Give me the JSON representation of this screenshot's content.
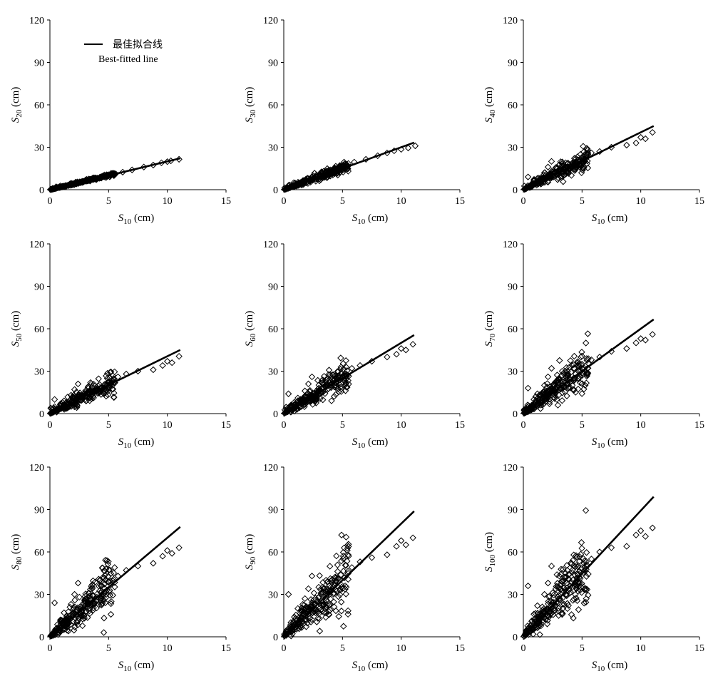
{
  "legend": {
    "label_cn": "最佳拟合线",
    "label_en": "Best-fitted line"
  },
  "colors": {
    "ink": "#000000",
    "background": "#ffffff"
  },
  "chart_data": [
    {
      "type": "scatter",
      "panel": "S20",
      "ylabel": {
        "sym": "S",
        "sub": "20",
        "unit": "(cm)"
      },
      "xlabel": {
        "sym": "S",
        "sub": "10",
        "unit": "(cm)"
      },
      "xlim": [
        0,
        15
      ],
      "ylim": [
        0,
        120
      ],
      "xticks": [
        "0",
        "5",
        "10",
        "15"
      ],
      "yticks": [
        "0",
        "30",
        "60",
        "90",
        "120"
      ],
      "fit": {
        "x": [
          0,
          11.1
        ],
        "y": [
          0,
          22.2
        ]
      },
      "marker": "diamond-open",
      "scatter_spread": 0.07,
      "scatter_points": [
        [
          0.2,
          0.4
        ],
        [
          0.5,
          1.0
        ],
        [
          0.8,
          1.6
        ],
        [
          1.0,
          2.0
        ],
        [
          1.3,
          2.6
        ],
        [
          1.6,
          3.2
        ],
        [
          2.0,
          4.0
        ],
        [
          2.3,
          4.7
        ],
        [
          2.6,
          5.2
        ],
        [
          3.0,
          6.1
        ],
        [
          3.3,
          6.6
        ],
        [
          3.6,
          7.2
        ],
        [
          4.0,
          8.0
        ],
        [
          4.4,
          8.8
        ],
        [
          4.8,
          9.6
        ],
        [
          5.2,
          10.4
        ],
        [
          5.6,
          11.2
        ],
        [
          6.2,
          12.4
        ],
        [
          7.0,
          14.0
        ],
        [
          8.0,
          16.0
        ],
        [
          8.8,
          17.4
        ],
        [
          9.5,
          19.0
        ],
        [
          10.0,
          19.8
        ],
        [
          10.3,
          20.4
        ],
        [
          11.0,
          21.5
        ]
      ],
      "legend": {
        "show": true,
        "placement": "top-left"
      }
    },
    {
      "type": "scatter",
      "panel": "S30",
      "ylabel": {
        "sym": "S",
        "sub": "30",
        "unit": "(cm)"
      },
      "xlabel": {
        "sym": "S",
        "sub": "10",
        "unit": "(cm)"
      },
      "xlim": [
        0,
        15
      ],
      "ylim": [
        0,
        120
      ],
      "xticks": [
        "0",
        "5",
        "10",
        "15"
      ],
      "yticks": [
        "0",
        "30",
        "60",
        "90",
        "120"
      ],
      "fit": {
        "x": [
          0,
          11.1
        ],
        "y": [
          0,
          33.3
        ]
      },
      "marker": "diamond-open",
      "scatter_spread": 0.16,
      "scatter_points": [
        [
          0.2,
          0.6
        ],
        [
          0.5,
          2.0
        ],
        [
          0.8,
          3.0
        ],
        [
          1.0,
          4.0
        ],
        [
          1.4,
          5.0
        ],
        [
          1.7,
          6.5
        ],
        [
          2.0,
          8.0
        ],
        [
          2.4,
          9.0
        ],
        [
          2.8,
          10.5
        ],
        [
          3.2,
          12.5
        ],
        [
          3.6,
          13.0
        ],
        [
          4.0,
          14.0
        ],
        [
          4.3,
          15.0
        ],
        [
          4.7,
          16.0
        ],
        [
          5.0,
          17.0
        ],
        [
          5.5,
          18.5
        ],
        [
          6.0,
          19.5
        ],
        [
          7.0,
          21.5
        ],
        [
          8.0,
          24.0
        ],
        [
          8.8,
          26.0
        ],
        [
          9.4,
          27.5
        ],
        [
          10.0,
          28.5
        ],
        [
          10.6,
          29.5
        ],
        [
          11.2,
          31.0
        ]
      ],
      "legend": {
        "show": false
      }
    },
    {
      "type": "scatter",
      "panel": "S40",
      "ylabel": {
        "sym": "S",
        "sub": "40",
        "unit": "(cm)"
      },
      "xlabel": {
        "sym": "S",
        "sub": "10",
        "unit": "(cm)"
      },
      "xlim": [
        0,
        15
      ],
      "ylim": [
        0,
        120
      ],
      "xticks": [
        "0",
        "5",
        "10",
        "15"
      ],
      "yticks": [
        "0",
        "30",
        "60",
        "90",
        "120"
      ],
      "fit": {
        "x": [
          0,
          11.1
        ],
        "y": [
          0,
          45
        ]
      },
      "marker": "diamond-open",
      "scatter_spread": 0.25,
      "scatter_points": [
        [
          0.2,
          1.0
        ],
        [
          0.4,
          9.0
        ],
        [
          0.6,
          3.0
        ],
        [
          0.9,
          6.0
        ],
        [
          1.2,
          8.0
        ],
        [
          1.5,
          4.0
        ],
        [
          1.8,
          12.0
        ],
        [
          2.1,
          16.0
        ],
        [
          2.4,
          20.0
        ],
        [
          2.7,
          12.0
        ],
        [
          3.0,
          14.0
        ],
        [
          3.3,
          17.0
        ],
        [
          3.6,
          19.0
        ],
        [
          4.0,
          16.0
        ],
        [
          4.4,
          18.0
        ],
        [
          4.8,
          20.0
        ],
        [
          5.2,
          22.0
        ],
        [
          5.8,
          26.0
        ],
        [
          6.5,
          27.0
        ],
        [
          7.5,
          30.0
        ],
        [
          8.8,
          31.5
        ],
        [
          9.6,
          33.0
        ],
        [
          10.0,
          37.0
        ],
        [
          10.4,
          36.0
        ],
        [
          11.0,
          40.5
        ]
      ],
      "legend": {
        "show": false
      }
    },
    {
      "type": "scatter",
      "panel": "S50",
      "ylabel": {
        "sym": "S",
        "sub": "50",
        "unit": "(cm)"
      },
      "xlabel": {
        "sym": "S",
        "sub": "10",
        "unit": "(cm)"
      },
      "xlim": [
        0,
        15
      ],
      "ylim": [
        0,
        120
      ],
      "xticks": [
        "0",
        "5",
        "10",
        "15"
      ],
      "yticks": [
        "0",
        "30",
        "60",
        "90",
        "120"
      ],
      "fit": {
        "x": [
          0,
          11.1
        ],
        "y": [
          0,
          45
        ]
      },
      "marker": "diamond-open",
      "scatter_spread": 0.27,
      "scatter_points": [
        [
          0.2,
          1.0
        ],
        [
          0.4,
          10.0
        ],
        [
          0.6,
          3.0
        ],
        [
          0.9,
          6.0
        ],
        [
          1.2,
          9.0
        ],
        [
          1.5,
          4.0
        ],
        [
          1.8,
          13.0
        ],
        [
          2.1,
          17.0
        ],
        [
          2.4,
          21.0
        ],
        [
          2.7,
          12.0
        ],
        [
          3.0,
          15.0
        ],
        [
          3.3,
          18.0
        ],
        [
          3.6,
          19.0
        ],
        [
          4.0,
          16.0
        ],
        [
          4.4,
          18.0
        ],
        [
          4.8,
          20.0
        ],
        [
          5.2,
          22.0
        ],
        [
          5.8,
          26.0
        ],
        [
          6.5,
          28.0
        ],
        [
          7.5,
          30.0
        ],
        [
          8.8,
          31.0
        ],
        [
          9.6,
          34.0
        ],
        [
          10.0,
          37.0
        ],
        [
          10.4,
          36.0
        ],
        [
          11.0,
          40.5
        ]
      ],
      "legend": {
        "show": false
      }
    },
    {
      "type": "scatter",
      "panel": "S60",
      "ylabel": {
        "sym": "S",
        "sub": "60",
        "unit": "(cm)"
      },
      "xlabel": {
        "sym": "S",
        "sub": "10",
        "unit": "(cm)"
      },
      "xlim": [
        0,
        15
      ],
      "ylim": [
        0,
        120
      ],
      "xticks": [
        "0",
        "5",
        "10",
        "15"
      ],
      "yticks": [
        "0",
        "30",
        "60",
        "90",
        "120"
      ],
      "fit": {
        "x": [
          0,
          11.1
        ],
        "y": [
          0,
          55.5
        ]
      },
      "marker": "diamond-open",
      "scatter_spread": 0.3,
      "scatter_points": [
        [
          0.2,
          1.0
        ],
        [
          0.4,
          14.0
        ],
        [
          0.6,
          4.0
        ],
        [
          0.9,
          8.0
        ],
        [
          1.2,
          11.0
        ],
        [
          1.5,
          5.0
        ],
        [
          1.8,
          16.0
        ],
        [
          2.1,
          21.0
        ],
        [
          2.4,
          26.0
        ],
        [
          2.7,
          14.0
        ],
        [
          3.0,
          18.0
        ],
        [
          3.3,
          22.0
        ],
        [
          3.6,
          24.0
        ],
        [
          4.0,
          20.0
        ],
        [
          4.4,
          22.0
        ],
        [
          4.8,
          24.0
        ],
        [
          5.2,
          28.0
        ],
        [
          5.8,
          32.0
        ],
        [
          6.5,
          34.0
        ],
        [
          7.5,
          37.0
        ],
        [
          8.8,
          40.0
        ],
        [
          9.6,
          42.0
        ],
        [
          10.0,
          46.0
        ],
        [
          10.4,
          45.0
        ],
        [
          11.0,
          49.0
        ]
      ],
      "legend": {
        "show": false
      }
    },
    {
      "type": "scatter",
      "panel": "S70",
      "ylabel": {
        "sym": "S",
        "sub": "70",
        "unit": "(cm)"
      },
      "xlabel": {
        "sym": "S",
        "sub": "10",
        "unit": "(cm)"
      },
      "xlim": [
        0,
        15
      ],
      "ylim": [
        0,
        120
      ],
      "xticks": [
        "0",
        "5",
        "10",
        "15"
      ],
      "yticks": [
        "0",
        "30",
        "60",
        "90",
        "120"
      ],
      "fit": {
        "x": [
          0,
          11.1
        ],
        "y": [
          0,
          66.6
        ]
      },
      "marker": "diamond-open",
      "scatter_spread": 0.34,
      "scatter_points": [
        [
          0.2,
          1.0
        ],
        [
          0.4,
          18.0
        ],
        [
          0.6,
          5.0
        ],
        [
          0.9,
          10.0
        ],
        [
          1.2,
          14.0
        ],
        [
          1.5,
          6.0
        ],
        [
          1.8,
          20.0
        ],
        [
          2.1,
          26.0
        ],
        [
          2.4,
          32.0
        ],
        [
          2.7,
          16.0
        ],
        [
          3.0,
          22.0
        ],
        [
          3.3,
          27.0
        ],
        [
          3.6,
          30.0
        ],
        [
          4.0,
          24.0
        ],
        [
          4.4,
          25.0
        ],
        [
          4.8,
          26.0
        ],
        [
          5.2,
          32.0
        ],
        [
          5.8,
          38.0
        ],
        [
          6.5,
          40.0
        ],
        [
          7.5,
          44.0
        ],
        [
          8.8,
          46.0
        ],
        [
          9.6,
          50.0
        ],
        [
          10.0,
          53.0
        ],
        [
          10.4,
          52.0
        ],
        [
          11.0,
          56.0
        ]
      ],
      "legend": {
        "show": false
      }
    },
    {
      "type": "scatter",
      "panel": "S80",
      "ylabel": {
        "sym": "S",
        "sub": "80",
        "unit": "(cm)"
      },
      "xlabel": {
        "sym": "S",
        "sub": "10",
        "unit": "(cm)"
      },
      "xlim": [
        0,
        15
      ],
      "ylim": [
        0,
        120
      ],
      "xticks": [
        "0",
        "5",
        "10",
        "15"
      ],
      "yticks": [
        "0",
        "30",
        "60",
        "90",
        "120"
      ],
      "fit": {
        "x": [
          0,
          11.1
        ],
        "y": [
          0,
          77.7
        ]
      },
      "marker": "diamond-open",
      "scatter_spread": 0.37,
      "scatter_points": [
        [
          0.2,
          1.0
        ],
        [
          0.4,
          24.0
        ],
        [
          0.6,
          6.0
        ],
        [
          0.9,
          12.0
        ],
        [
          1.2,
          17.0
        ],
        [
          1.5,
          7.0
        ],
        [
          1.8,
          23.0
        ],
        [
          2.1,
          30.0
        ],
        [
          2.4,
          38.0
        ],
        [
          2.7,
          18.0
        ],
        [
          3.0,
          25.0
        ],
        [
          3.3,
          31.0
        ],
        [
          3.6,
          35.0
        ],
        [
          4.0,
          28.0
        ],
        [
          4.4,
          29.0
        ],
        [
          4.8,
          30.0
        ],
        [
          5.2,
          37.0
        ],
        [
          5.8,
          43.0
        ],
        [
          6.5,
          47.0
        ],
        [
          7.5,
          50.0
        ],
        [
          8.8,
          52.0
        ],
        [
          9.6,
          57.0
        ],
        [
          10.0,
          61.0
        ],
        [
          10.4,
          59.0
        ],
        [
          11.0,
          63.0
        ]
      ],
      "legend": {
        "show": false
      }
    },
    {
      "type": "scatter",
      "panel": "S90",
      "ylabel": {
        "sym": "S",
        "sub": "90",
        "unit": "(cm)"
      },
      "xlabel": {
        "sym": "S",
        "sub": "10",
        "unit": "(cm)"
      },
      "xlim": [
        0,
        15
      ],
      "ylim": [
        0,
        120
      ],
      "xticks": [
        "0",
        "5",
        "10",
        "15"
      ],
      "yticks": [
        "0",
        "30",
        "60",
        "90",
        "120"
      ],
      "fit": {
        "x": [
          0,
          11.1
        ],
        "y": [
          0,
          88.8
        ]
      },
      "marker": "diamond-open",
      "scatter_spread": 0.4,
      "scatter_points": [
        [
          0.2,
          1.0
        ],
        [
          0.4,
          30.0
        ],
        [
          0.6,
          7.0
        ],
        [
          0.9,
          14.0
        ],
        [
          1.2,
          20.0
        ],
        [
          1.5,
          8.0
        ],
        [
          1.8,
          27.0
        ],
        [
          2.1,
          34.0
        ],
        [
          2.4,
          43.0
        ],
        [
          2.7,
          20.0
        ],
        [
          3.0,
          28.0
        ],
        [
          3.3,
          35.0
        ],
        [
          3.6,
          40.0
        ],
        [
          4.0,
          32.0
        ],
        [
          4.4,
          33.0
        ],
        [
          4.8,
          34.0
        ],
        [
          5.2,
          42.0
        ],
        [
          5.8,
          49.0
        ],
        [
          6.5,
          53.0
        ],
        [
          7.5,
          56.0
        ],
        [
          8.8,
          58.0
        ],
        [
          9.6,
          64.0
        ],
        [
          10.0,
          68.0
        ],
        [
          10.4,
          65.0
        ],
        [
          11.0,
          70.0
        ]
      ],
      "legend": {
        "show": false
      }
    },
    {
      "type": "scatter",
      "panel": "S100",
      "ylabel": {
        "sym": "S",
        "sub": "100",
        "unit": "(cm)"
      },
      "xlabel": {
        "sym": "S",
        "sub": "10",
        "unit": "(cm)"
      },
      "xlim": [
        0,
        15
      ],
      "ylim": [
        0,
        120
      ],
      "xticks": [
        "0",
        "5",
        "10",
        "15"
      ],
      "yticks": [
        "0",
        "30",
        "60",
        "90",
        "120"
      ],
      "fit": {
        "x": [
          0,
          11.1
        ],
        "y": [
          0,
          99
        ]
      },
      "marker": "diamond-open",
      "scatter_spread": 0.42,
      "scatter_points": [
        [
          0.2,
          1.0
        ],
        [
          0.4,
          36.0
        ],
        [
          0.6,
          8.0
        ],
        [
          0.9,
          16.0
        ],
        [
          1.2,
          22.0
        ],
        [
          1.5,
          9.0
        ],
        [
          1.8,
          30.0
        ],
        [
          2.1,
          38.0
        ],
        [
          2.4,
          50.0
        ],
        [
          2.7,
          22.0
        ],
        [
          3.0,
          32.0
        ],
        [
          3.3,
          39.0
        ],
        [
          3.6,
          45.0
        ],
        [
          4.0,
          36.0
        ],
        [
          4.4,
          37.0
        ],
        [
          4.8,
          38.0
        ],
        [
          5.2,
          47.0
        ],
        [
          5.8,
          55.0
        ],
        [
          6.5,
          60.0
        ],
        [
          7.5,
          63.0
        ],
        [
          8.8,
          64.0
        ],
        [
          9.6,
          72.0
        ],
        [
          10.0,
          75.0
        ],
        [
          10.4,
          71.0
        ],
        [
          11.0,
          77.0
        ]
      ],
      "legend": {
        "show": false
      }
    }
  ]
}
